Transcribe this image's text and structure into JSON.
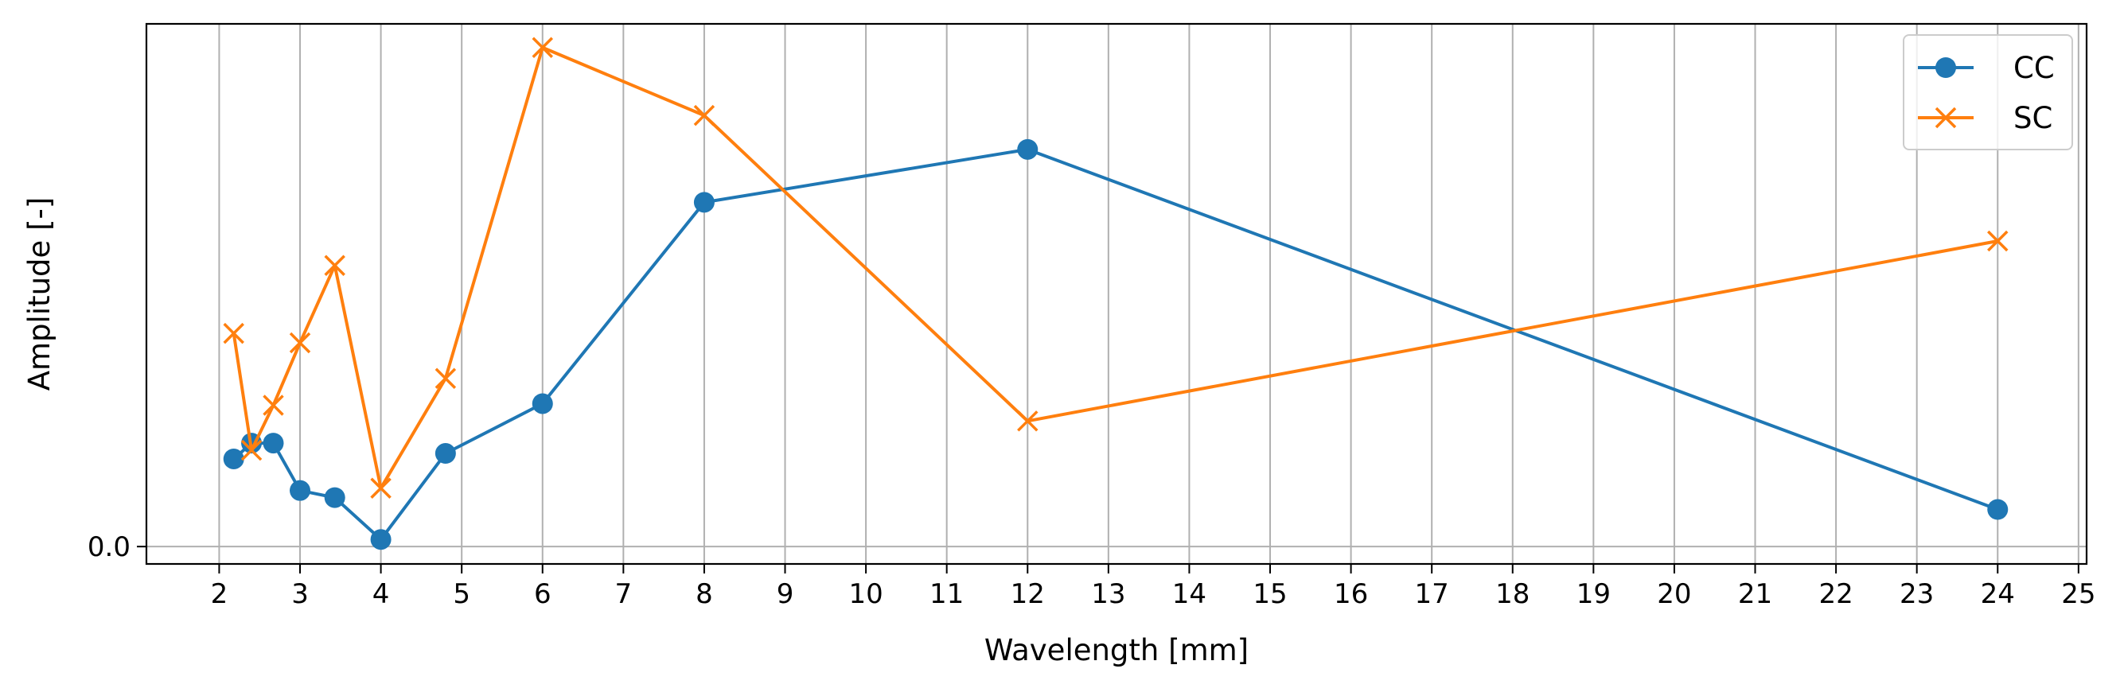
{
  "chart_data": {
    "type": "line",
    "title": "",
    "xlabel": "Wavelength [mm]",
    "ylabel": "Amplitude [-]",
    "xlim": [
      1.1,
      25.1
    ],
    "ylim": [
      -0.022,
      0.662
    ],
    "x_ticks": [
      2,
      3,
      4,
      5,
      6,
      7,
      8,
      9,
      10,
      11,
      12,
      13,
      14,
      15,
      16,
      17,
      18,
      19,
      20,
      21,
      22,
      23,
      24,
      25
    ],
    "y_ticks": [
      0.0
    ],
    "y_tick_labels": [
      "0.0"
    ],
    "grid": "vertical",
    "legend_position": "top-right",
    "series": [
      {
        "name": "CC",
        "color": "#1f77b4",
        "marker": "circle",
        "x": [
          2.18,
          2.4,
          2.67,
          3.0,
          3.43,
          4.0,
          4.8,
          6.0,
          8.0,
          12.0,
          24.0
        ],
        "y": [
          0.111,
          0.131,
          0.131,
          0.071,
          0.062,
          0.009,
          0.118,
          0.181,
          0.436,
          0.503,
          0.047
        ]
      },
      {
        "name": "SC",
        "color": "#ff7f0e",
        "marker": "x",
        "x": [
          2.18,
          2.4,
          2.67,
          3.0,
          3.43,
          4.0,
          4.8,
          6.0,
          8.0,
          12.0,
          24.0
        ],
        "y": [
          0.27,
          0.122,
          0.179,
          0.258,
          0.356,
          0.074,
          0.213,
          0.632,
          0.546,
          0.159,
          0.387
        ]
      }
    ]
  }
}
